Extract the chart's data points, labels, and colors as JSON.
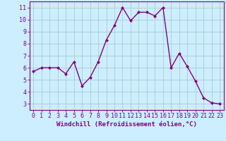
{
  "x": [
    0,
    1,
    2,
    3,
    4,
    5,
    6,
    7,
    8,
    9,
    10,
    11,
    12,
    13,
    14,
    15,
    16,
    17,
    18,
    19,
    20,
    21,
    22,
    23
  ],
  "y": [
    5.7,
    6.0,
    6.0,
    6.0,
    5.5,
    6.5,
    4.5,
    5.2,
    6.5,
    8.3,
    9.5,
    11.0,
    9.9,
    10.6,
    10.6,
    10.3,
    11.0,
    6.0,
    7.2,
    6.1,
    4.9,
    3.5,
    3.1,
    3.0
  ],
  "line_color": "#800080",
  "marker": "D",
  "marker_size": 2.0,
  "bg_color": "#cceeff",
  "grid_color": "#aacccc",
  "xlabel": "Windchill (Refroidissement éolien,°C)",
  "yticks": [
    3,
    4,
    5,
    6,
    7,
    8,
    9,
    10,
    11
  ],
  "xlim": [
    -0.5,
    23.5
  ],
  "ylim": [
    2.5,
    11.5
  ],
  "xlabel_fontsize": 6.5,
  "tick_fontsize": 6.0,
  "line_width": 1.0,
  "tick_color": "#800080",
  "spine_color": "#800080"
}
